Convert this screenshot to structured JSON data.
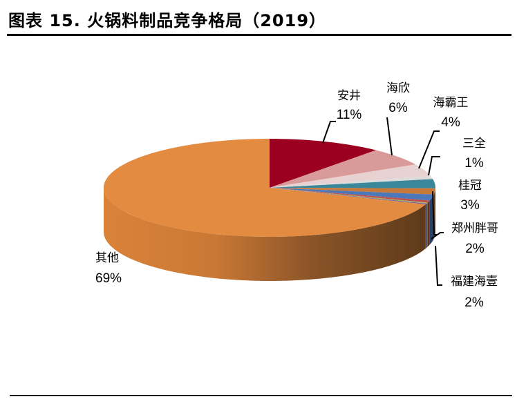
{
  "header": {
    "title": "图表 15. 火锅料制品竞争格局（2019）"
  },
  "chart_data": {
    "type": "pie",
    "style": "3d-pie",
    "title": "火锅料制品竞争格局（2019）",
    "figure_label": "图表 15.",
    "unit": "%",
    "slices": [
      {
        "name": "安井",
        "value": 11,
        "label": "11%",
        "color": "#9B0020"
      },
      {
        "name": "海欣",
        "value": 6,
        "label": "6%",
        "color": "#D99A9A"
      },
      {
        "name": "海霸王",
        "value": 4,
        "label": "4%",
        "color": "#E8D1D1"
      },
      {
        "name": "三全",
        "value": 1,
        "label": "1%",
        "color": "#DCDCDC"
      },
      {
        "name": "桂冠",
        "value": 3,
        "label": "3%",
        "color": "#3A8799"
      },
      {
        "name": "郑州胖哥",
        "value": 2,
        "label": "2%",
        "color": "#C8783A"
      },
      {
        "name": "福建海壹",
        "value": 2,
        "label": "2%",
        "color": "#4A78B8"
      },
      {
        "name": "其他",
        "value": 69,
        "label": "69%",
        "color": "#E38B40"
      }
    ],
    "unlabeled_slivers": [
      {
        "color": "#C0504D",
        "value": 0.7
      },
      {
        "color": "#9BBB59",
        "value": 0.3
      },
      {
        "color": "#8064A2",
        "value": 0.3
      }
    ],
    "legend": "none (data labels with leader lines)"
  }
}
